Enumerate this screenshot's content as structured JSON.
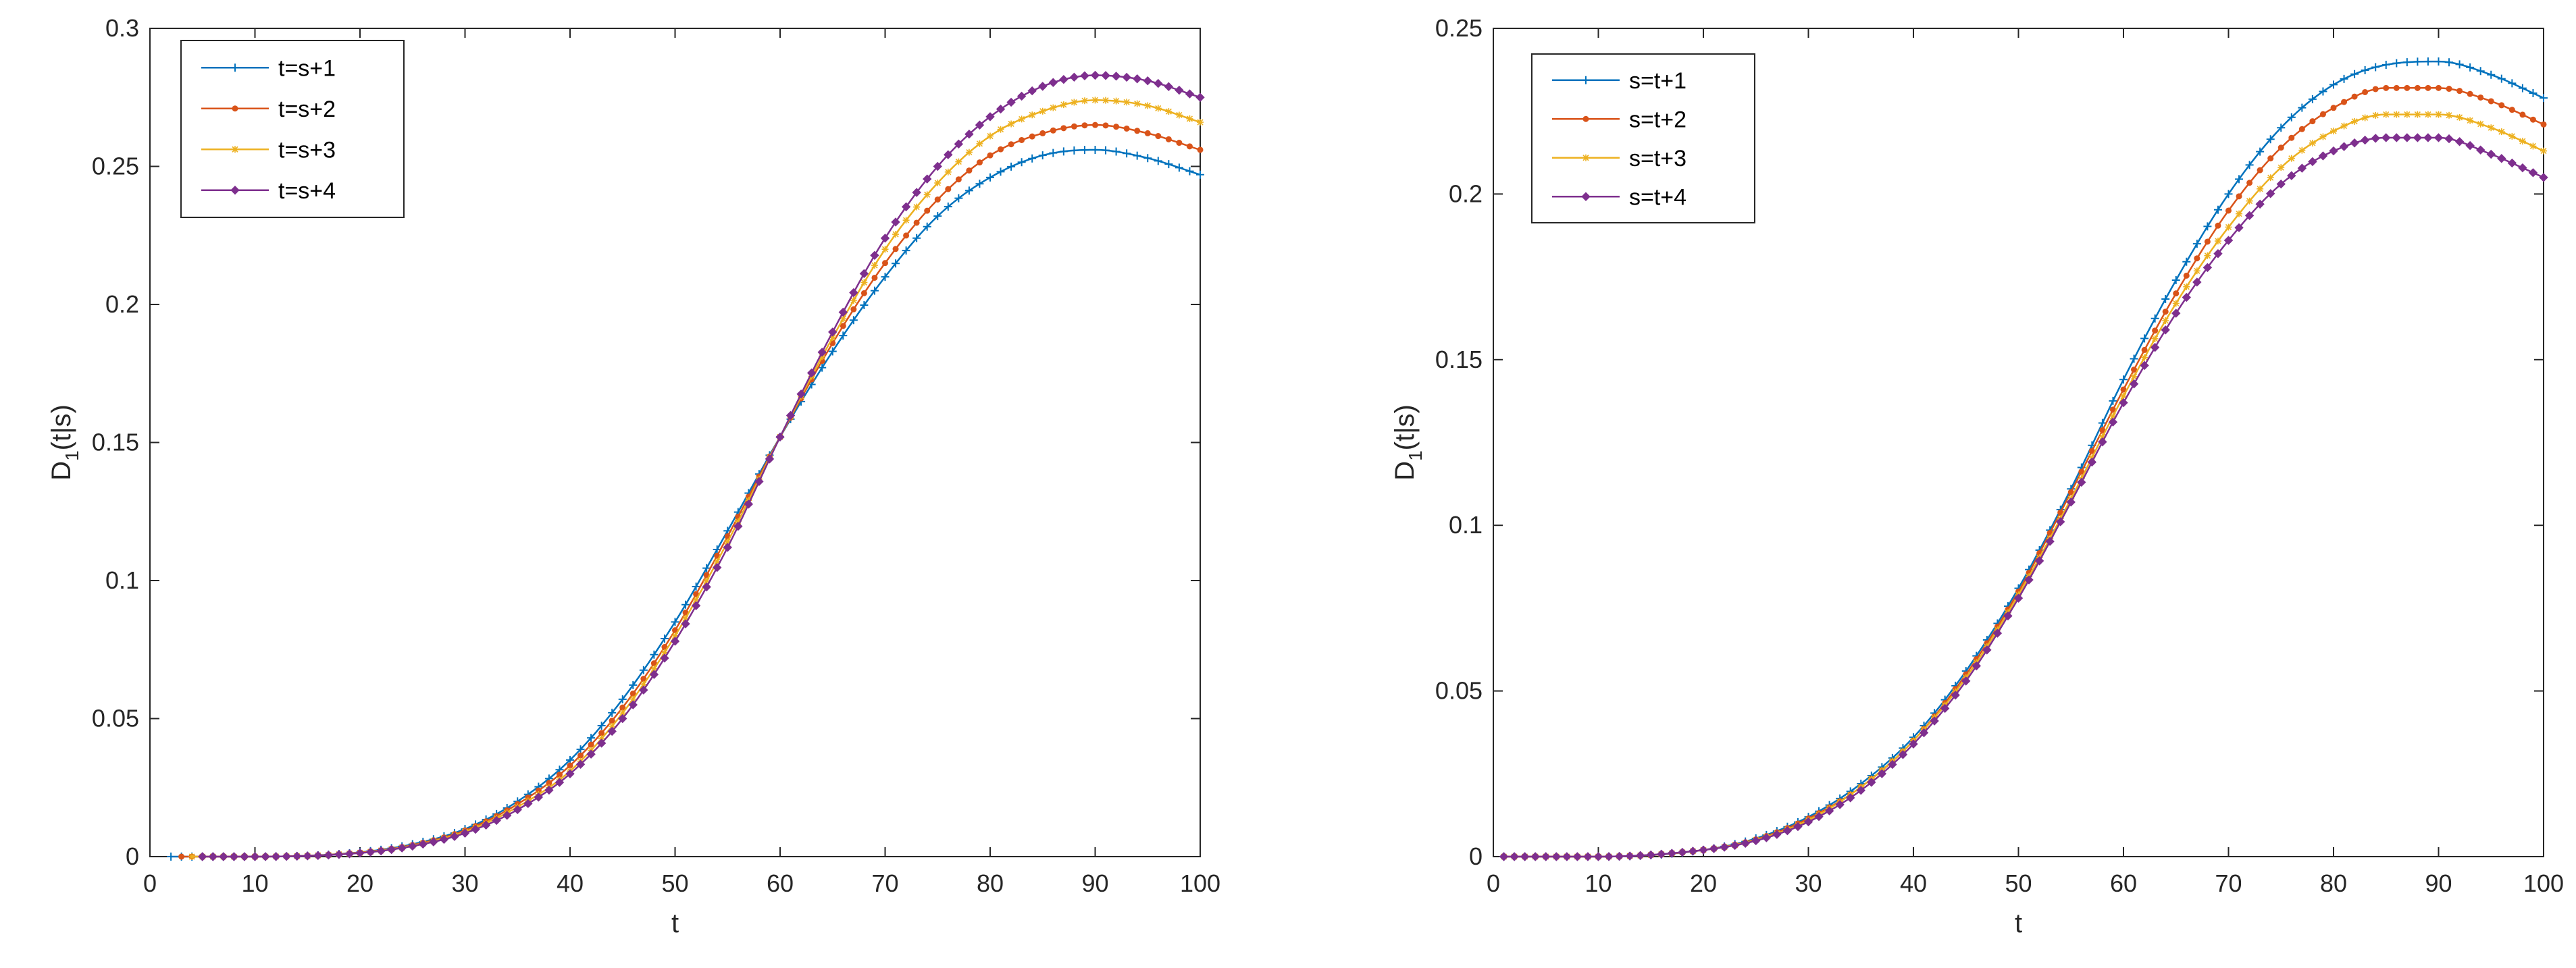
{
  "chart_data": [
    {
      "type": "line",
      "xlabel": "t",
      "ylabel_main": "D",
      "ylabel_sub": "1",
      "ylabel_rest": "(t|s)",
      "xlim": [
        0,
        100
      ],
      "ylim": [
        0,
        0.3
      ],
      "xticks": [
        0,
        10,
        20,
        30,
        40,
        50,
        60,
        70,
        80,
        90,
        100
      ],
      "yticks": [
        0,
        0.05,
        0.1,
        0.15,
        0.2,
        0.25,
        0.3
      ],
      "ytick_labels": [
        "0",
        "0.05",
        "0.1",
        "0.15",
        "0.2",
        "0.25",
        "0.3"
      ],
      "legend_position": "top-left",
      "x": [
        0,
        10,
        20,
        25,
        30,
        35,
        40,
        45,
        50,
        55,
        60,
        65,
        70,
        75,
        80,
        85,
        90,
        95,
        100
      ],
      "series": [
        {
          "name": "t=s+1",
          "color": "#0072BD",
          "marker": "plus",
          "x_start": 2,
          "values": [
            0,
            0,
            0.0016,
            0.0045,
            0.01,
            0.02,
            0.035,
            0.057,
            0.085,
            0.118,
            0.152,
            0.183,
            0.21,
            0.232,
            0.246,
            0.254,
            0.256,
            0.253,
            0.247
          ]
        },
        {
          "name": "t=s+2",
          "color": "#D95319",
          "marker": "dot",
          "x_start": 3,
          "values": [
            0,
            0,
            0.0015,
            0.0042,
            0.0095,
            0.019,
            0.033,
            0.054,
            0.082,
            0.116,
            0.152,
            0.186,
            0.215,
            0.238,
            0.254,
            0.262,
            0.265,
            0.262,
            0.256
          ]
        },
        {
          "name": "t=s+3",
          "color": "#EDB120",
          "marker": "asterisk",
          "x_start": 4,
          "values": [
            0,
            0,
            0.0014,
            0.004,
            0.009,
            0.018,
            0.031,
            0.052,
            0.08,
            0.114,
            0.152,
            0.188,
            0.22,
            0.244,
            0.261,
            0.27,
            0.274,
            0.272,
            0.266
          ]
        },
        {
          "name": "t=s+4",
          "color": "#7E2F8E",
          "marker": "diamond",
          "x_start": 5,
          "values": [
            0,
            0,
            0.0013,
            0.0038,
            0.0085,
            0.017,
            0.03,
            0.05,
            0.078,
            0.112,
            0.152,
            0.19,
            0.224,
            0.25,
            0.268,
            0.279,
            0.283,
            0.281,
            0.275
          ]
        }
      ]
    },
    {
      "type": "line",
      "xlabel": "t",
      "ylabel_main": "D",
      "ylabel_sub": "1",
      "ylabel_rest": "(t|s)",
      "xlim": [
        0,
        100
      ],
      "ylim": [
        0,
        0.25
      ],
      "xticks": [
        0,
        10,
        20,
        30,
        40,
        50,
        60,
        70,
        80,
        90,
        100
      ],
      "yticks": [
        0,
        0.05,
        0.1,
        0.15,
        0.2,
        0.25
      ],
      "ytick_labels": [
        "0",
        "0.05",
        "0.1",
        "0.15",
        "0.2",
        "0.25"
      ],
      "legend_position": "top-left",
      "x": [
        0,
        10,
        20,
        25,
        30,
        35,
        40,
        45,
        50,
        55,
        60,
        65,
        70,
        75,
        80,
        85,
        90,
        95,
        100
      ],
      "series": [
        {
          "name": "s=t+1",
          "color": "#0072BD",
          "marker": "plus",
          "x_start": 1,
          "values": [
            0,
            0,
            0.002,
            0.0055,
            0.012,
            0.022,
            0.036,
            0.056,
            0.081,
            0.111,
            0.144,
            0.174,
            0.2,
            0.22,
            0.233,
            0.239,
            0.24,
            0.236,
            0.229
          ]
        },
        {
          "name": "s=t+2",
          "color": "#D95319",
          "marker": "dot",
          "x_start": 1,
          "values": [
            0,
            0,
            0.002,
            0.0052,
            0.0115,
            0.021,
            0.035,
            0.055,
            0.08,
            0.11,
            0.141,
            0.17,
            0.195,
            0.214,
            0.226,
            0.232,
            0.232,
            0.228,
            0.221
          ]
        },
        {
          "name": "s=t+3",
          "color": "#EDB120",
          "marker": "asterisk",
          "x_start": 1,
          "values": [
            0,
            0,
            0.002,
            0.005,
            0.011,
            0.021,
            0.035,
            0.054,
            0.079,
            0.108,
            0.139,
            0.167,
            0.19,
            0.208,
            0.219,
            0.224,
            0.224,
            0.22,
            0.213
          ]
        },
        {
          "name": "s=t+4",
          "color": "#7E2F8E",
          "marker": "diamond",
          "x_start": 1,
          "values": [
            0,
            0,
            0.002,
            0.0048,
            0.0105,
            0.02,
            0.034,
            0.053,
            0.078,
            0.107,
            0.137,
            0.164,
            0.186,
            0.203,
            0.213,
            0.217,
            0.217,
            0.212,
            0.205
          ]
        }
      ]
    }
  ]
}
